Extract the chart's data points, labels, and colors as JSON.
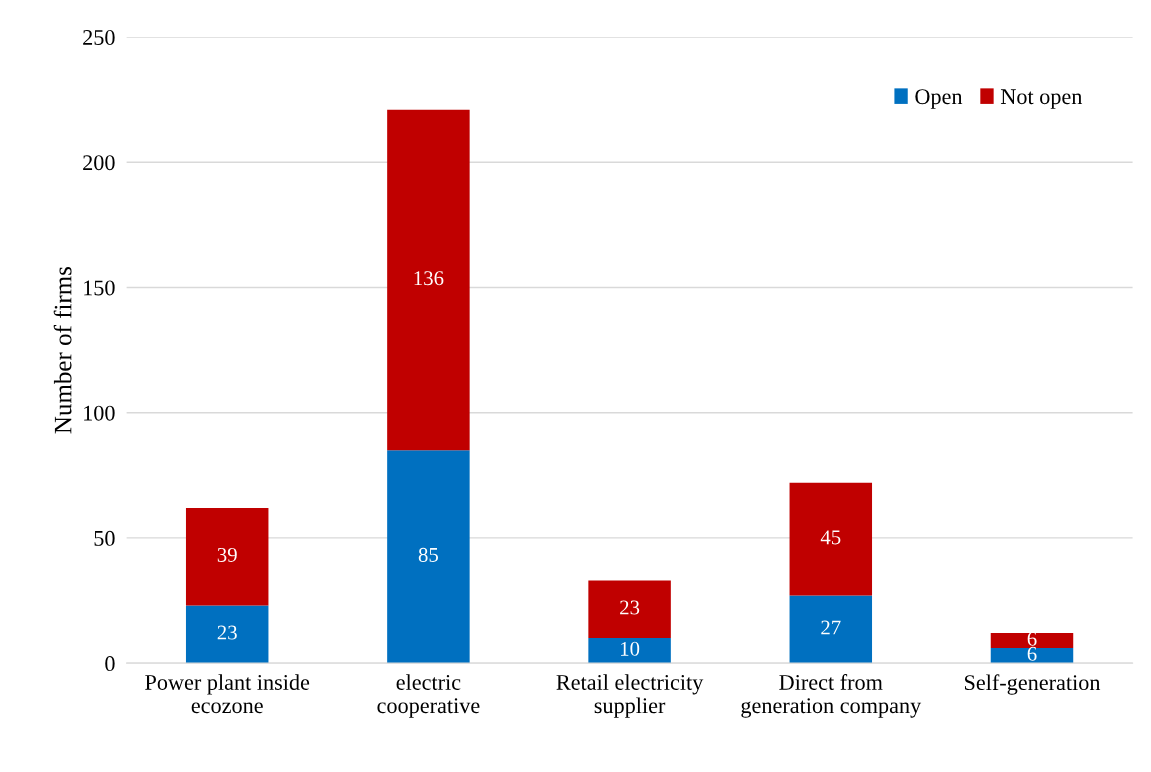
{
  "chart_data": {
    "type": "bar",
    "stacked": true,
    "ylabel": "Number of firms",
    "categories": [
      "Power plant inside\necozone",
      "electric\ncooperative",
      "Retail electricity\nsupplier",
      "Direct from\ngeneration company",
      "Self-generation"
    ],
    "series": [
      {
        "name": "Open",
        "color": "#0070c0",
        "values": [
          23,
          85,
          10,
          27,
          6
        ]
      },
      {
        "name": "Not open",
        "color": "#c00000",
        "values": [
          39,
          136,
          23,
          45,
          6
        ]
      }
    ],
    "ylim": [
      0,
      250
    ],
    "yticks": [
      0,
      50,
      100,
      150,
      200,
      250
    ],
    "grid": "y",
    "legend": "top right",
    "data_labels": true
  }
}
